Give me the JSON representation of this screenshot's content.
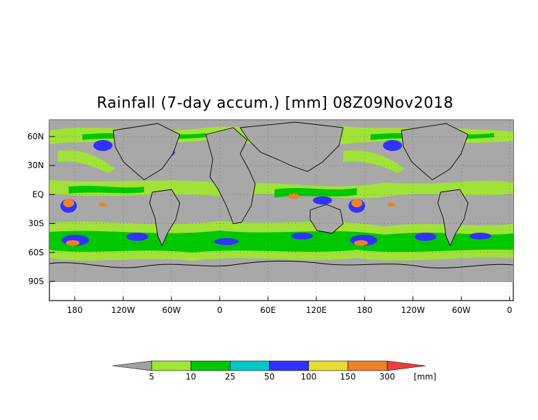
{
  "title": "Rainfall (7-day accum.) [mm] 08Z09Nov2018",
  "map": {
    "latitude_labels": [
      "60N",
      "30N",
      "EQ",
      "30S",
      "60S",
      "90S"
    ],
    "longitude_labels": [
      "180",
      "120W",
      "60W",
      "0",
      "60E",
      "120E",
      "180",
      "120W",
      "60W",
      "0"
    ],
    "colors": {
      "ocean_no_rain": "#a8a8a8",
      "no_data": "#ffffff",
      "coastline": "#000000"
    }
  },
  "colorbar": {
    "levels": [
      "5",
      "10",
      "25",
      "50",
      "100",
      "150",
      "300"
    ],
    "unit": "[mm]",
    "colors": [
      "#a0a0a0",
      "#a0e632",
      "#00c800",
      "#00c8c8",
      "#3232ff",
      "#e6dc32",
      "#f08228",
      "#f03c3c"
    ]
  }
}
